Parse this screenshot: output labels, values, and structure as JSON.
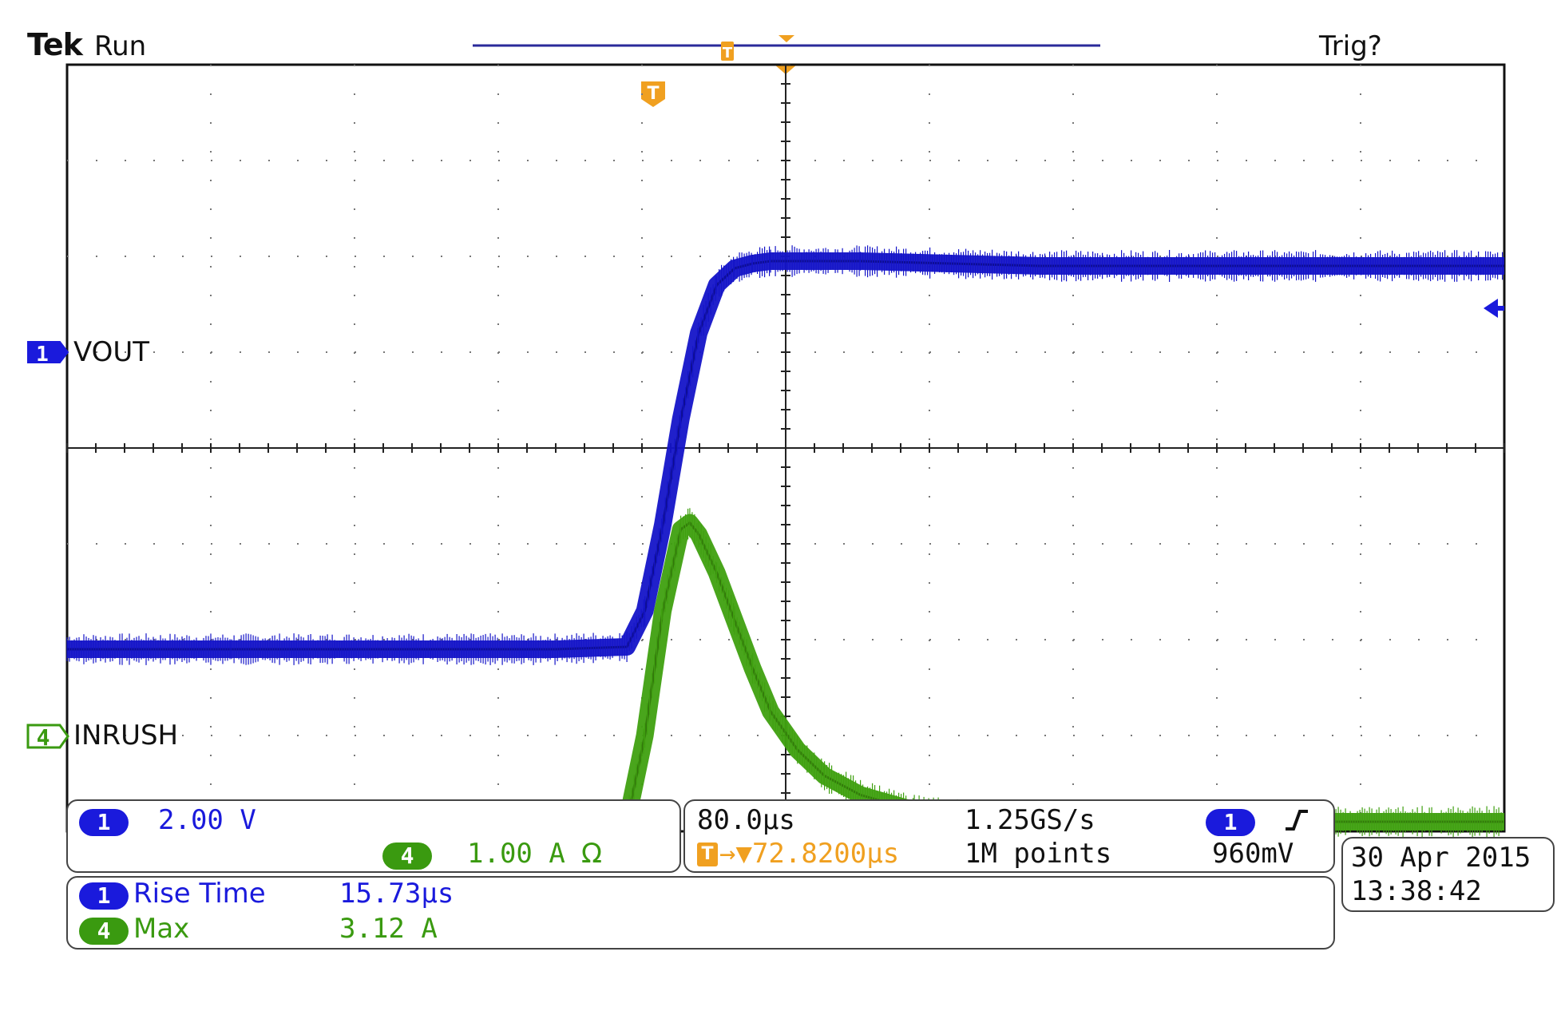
{
  "header": {
    "brand": "Tek",
    "state": "Run",
    "trigger_status": "Trig?"
  },
  "channels": {
    "ch1": {
      "marker": "1",
      "label": "VOUT",
      "scale": "2.00 V",
      "color": "#1414c8"
    },
    "ch4": {
      "marker": "4",
      "label": "INRUSH",
      "scale": "1.00 A",
      "coupling": "Ω",
      "color": "#3fa010"
    }
  },
  "timebase": {
    "horizontal_scale": "80.0µs",
    "sample_rate": "1.25GS/s",
    "trigger_position_icon": "T",
    "trigger_delay": "→▼72.8200µs",
    "record_length": "1M points"
  },
  "trigger": {
    "source": "1",
    "slope_icon": "rising-edge-icon",
    "slope_glyph": "∫",
    "level": "960mV"
  },
  "datetime": {
    "date": "30 Apr  2015",
    "time": "13:38:42"
  },
  "measurements": [
    {
      "channel": "1",
      "name": "Rise Time",
      "value": "15.73µs",
      "color": "#1a1adc"
    },
    {
      "channel": "4",
      "name": "Max",
      "value": "3.12 A",
      "color": "#3a9a10"
    }
  ],
  "chart_data": {
    "type": "line",
    "title": "",
    "xlabel": "",
    "ylabel": "",
    "x_unit": "µs",
    "grid": true,
    "xlim": [
      -391.6,
      408.4
    ],
    "x_divisions": 10,
    "y_divisions": 8,
    "series": [
      {
        "name": "VOUT",
        "channel": "1",
        "unit": "V",
        "ylim": [
          -3.8,
          12.2
        ],
        "x": [
          -391.6,
          -300,
          -200,
          -120,
          -80,
          -70,
          -60,
          -50,
          -40,
          -30,
          -20,
          -10,
          0,
          50,
          150,
          250,
          408.4
        ],
        "values": [
          0.0,
          0.0,
          0.0,
          0.0,
          0.05,
          0.8,
          2.6,
          4.8,
          6.6,
          7.6,
          7.95,
          8.05,
          8.1,
          8.1,
          8.0,
          8.0,
          8.0
        ]
      },
      {
        "name": "INRUSH",
        "channel": "4",
        "unit": "A",
        "ylim": [
          -0.1,
          7.9
        ],
        "x": [
          -391.6,
          -300,
          -200,
          -120,
          -80,
          -70,
          -60,
          -50,
          -45,
          -40,
          -30,
          -20,
          -10,
          0,
          15,
          30,
          50,
          80,
          120,
          200,
          300,
          408.4
        ],
        "values": [
          0.0,
          0.0,
          0.0,
          0.0,
          0.0,
          0.9,
          2.2,
          3.05,
          3.12,
          3.0,
          2.6,
          2.1,
          1.6,
          1.15,
          0.75,
          0.48,
          0.28,
          0.12,
          0.05,
          0.02,
          0.0,
          0.0
        ]
      }
    ]
  }
}
